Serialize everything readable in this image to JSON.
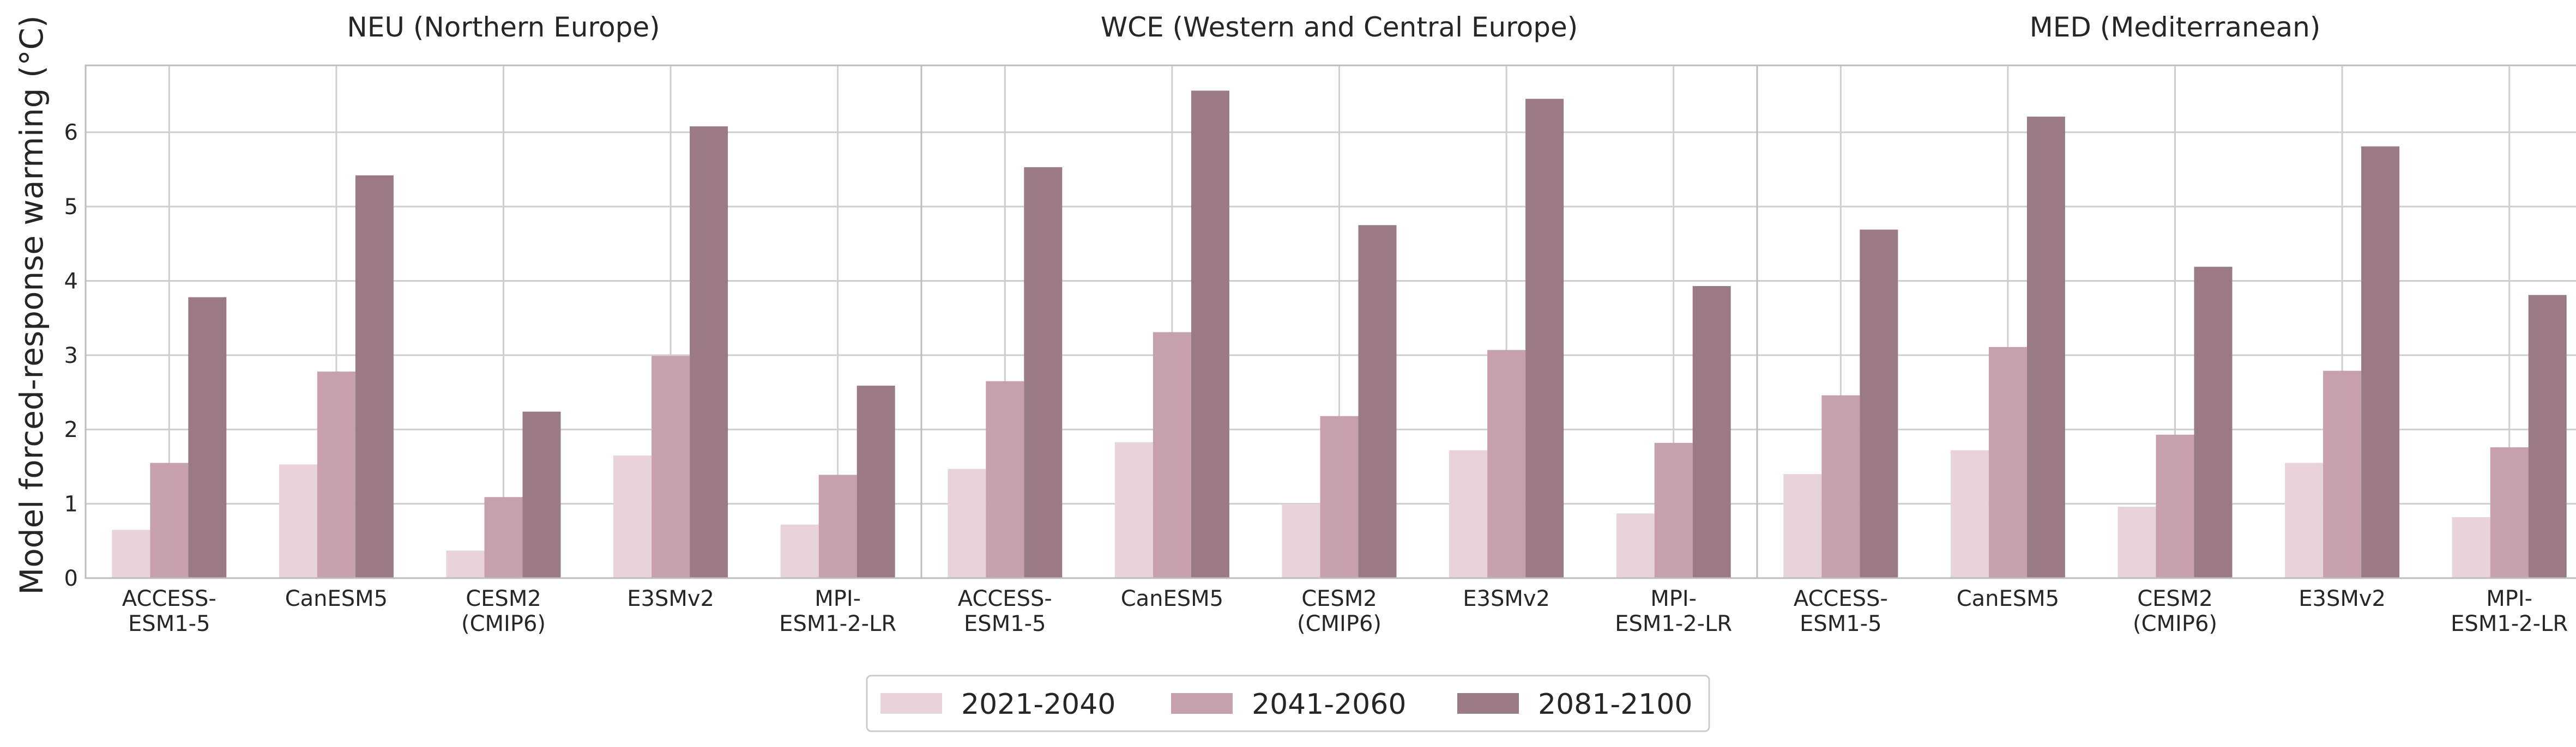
{
  "chart_data": {
    "type": "bar",
    "ylabel": "Model forced-response warming (°C)",
    "ylim": [
      0,
      6.9
    ],
    "yticks": [
      0,
      1,
      2,
      3,
      4,
      5,
      6
    ],
    "grid": true,
    "legend_position": "bottom-center",
    "categories": [
      [
        "ACCESS-",
        "ESM1-5"
      ],
      [
        "CanESM5"
      ],
      [
        "CESM2",
        "(CMIP6)"
      ],
      [
        "E3SMv2"
      ],
      [
        "MPI-",
        "ESM1-2-LR"
      ]
    ],
    "series_names": [
      "2021-2040",
      "2041-2060",
      "2081-2100"
    ],
    "colors": [
      "#e8d3da",
      "#c7a0ae",
      "#9a7a84"
    ],
    "panels": [
      {
        "title": "NEU (Northern Europe)",
        "series": [
          {
            "name": "2021-2040",
            "values": [
              0.65,
              1.53,
              0.37,
              1.65,
              0.72
            ]
          },
          {
            "name": "2041-2060",
            "values": [
              1.55,
              2.78,
              1.09,
              2.99,
              1.39
            ]
          },
          {
            "name": "2081-2100",
            "values": [
              3.78,
              5.42,
              2.24,
              6.08,
              2.59
            ]
          }
        ]
      },
      {
        "title": "WCE (Western and Central Europe)",
        "series": [
          {
            "name": "2021-2040",
            "values": [
              1.47,
              1.83,
              1.0,
              1.72,
              0.87
            ]
          },
          {
            "name": "2041-2060",
            "values": [
              2.65,
              3.31,
              2.18,
              3.07,
              1.82
            ]
          },
          {
            "name": "2081-2100",
            "values": [
              5.53,
              6.56,
              4.75,
              6.45,
              3.93
            ]
          }
        ]
      },
      {
        "title": "MED (Mediterranean)",
        "series": [
          {
            "name": "2021-2040",
            "values": [
              1.4,
              1.72,
              0.96,
              1.55,
              0.82
            ]
          },
          {
            "name": "2041-2060",
            "values": [
              2.46,
              3.11,
              1.93,
              2.79,
              1.76
            ]
          },
          {
            "name": "2081-2100",
            "values": [
              4.69,
              6.21,
              4.19,
              5.81,
              3.81
            ]
          }
        ]
      }
    ]
  }
}
